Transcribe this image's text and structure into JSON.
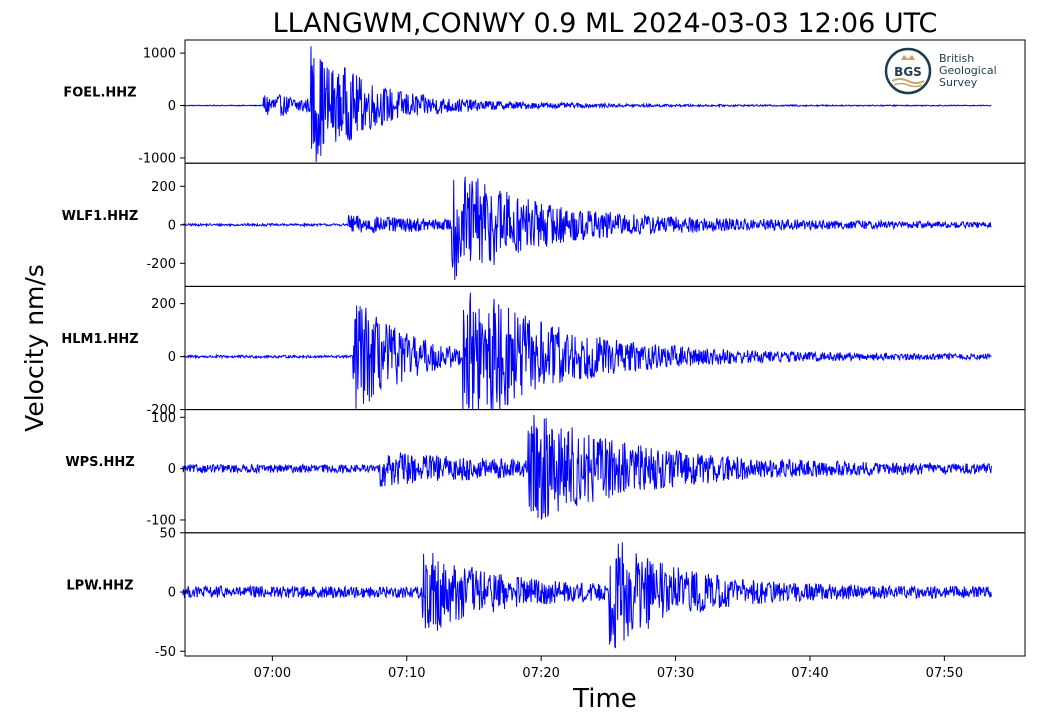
{
  "chart_data": {
    "type": "line",
    "title": "LLANGWM,CONWY 0.9 ML   2024-03-03 12:06 UTC",
    "xlabel": "Time",
    "ylabel": "Velocity nm/s",
    "x_range": [
      "06:53:30",
      "07:56:00"
    ],
    "x_ticks": [
      "07:00",
      "07:10",
      "07:20",
      "07:30",
      "07:40",
      "07:50"
    ],
    "trace_start": "06:53:20",
    "trace_end": "07:53:30",
    "color": "#0000ff",
    "grid": false,
    "panels": [
      {
        "station": "FOEL.HHZ",
        "ylim": [
          -1100,
          1250
        ],
        "yticks": [
          1000,
          0,
          -1000
        ],
        "ytick_labels": [
          "1000",
          "0",
          "-1000"
        ],
        "noise": 8,
        "events": [
          {
            "time": "06:59:20",
            "amp": 240,
            "decay_min": 6
          },
          {
            "time": "07:02:50",
            "amp": 1100,
            "decay_min": 3
          },
          {
            "time": "07:05:00",
            "amp": 180,
            "decay_min": 10
          }
        ]
      },
      {
        "station": "WLF1.HHZ",
        "ylim": [
          -320,
          320
        ],
        "yticks": [
          200,
          0,
          -200
        ],
        "ytick_labels": [
          "200",
          "0",
          "-200"
        ],
        "noise": 6,
        "events": [
          {
            "time": "07:05:40",
            "amp": 45,
            "decay_min": 12
          },
          {
            "time": "07:13:20",
            "amp": 300,
            "decay_min": 4
          },
          {
            "time": "07:15:00",
            "amp": 60,
            "decay_min": 20
          }
        ]
      },
      {
        "station": "HLM1.HHZ",
        "ylim": [
          -200,
          265
        ],
        "yticks": [
          200,
          0,
          -200
        ],
        "ytick_labels": [
          "200",
          "0",
          "-200"
        ],
        "noise": 5,
        "events": [
          {
            "time": "07:06:00",
            "amp": 230,
            "decay_min": 4
          },
          {
            "time": "07:14:10",
            "amp": 240,
            "decay_min": 6
          },
          {
            "time": "07:16:00",
            "amp": 40,
            "decay_min": 18
          }
        ]
      },
      {
        "station": "WPS.HHZ",
        "ylim": [
          -125,
          115
        ],
        "yticks": [
          100,
          0,
          -100
        ],
        "ytick_labels": [
          "100",
          "0",
          "-100"
        ],
        "noise": 8,
        "events": [
          {
            "time": "07:08:00",
            "amp": 28,
            "decay_min": 10
          },
          {
            "time": "07:19:00",
            "amp": 100,
            "decay_min": 8
          }
        ]
      },
      {
        "station": "LPW.HHZ",
        "ylim": [
          -54,
          50
        ],
        "yticks": [
          50,
          0,
          -50
        ],
        "ytick_labels": [
          "50",
          "0",
          "-50"
        ],
        "noise": 5,
        "events": [
          {
            "time": "07:11:10",
            "amp": 35,
            "decay_min": 5
          },
          {
            "time": "07:25:00",
            "amp": 45,
            "decay_min": 5
          }
        ]
      }
    ]
  },
  "logo": {
    "name": "bgs-logo",
    "abbr": "BGS",
    "lines": [
      "British",
      "Geological",
      "Survey"
    ],
    "colors": {
      "ring": "#1f3d4a",
      "crown": "#c9a46a",
      "wave": "#c9a46a"
    }
  }
}
